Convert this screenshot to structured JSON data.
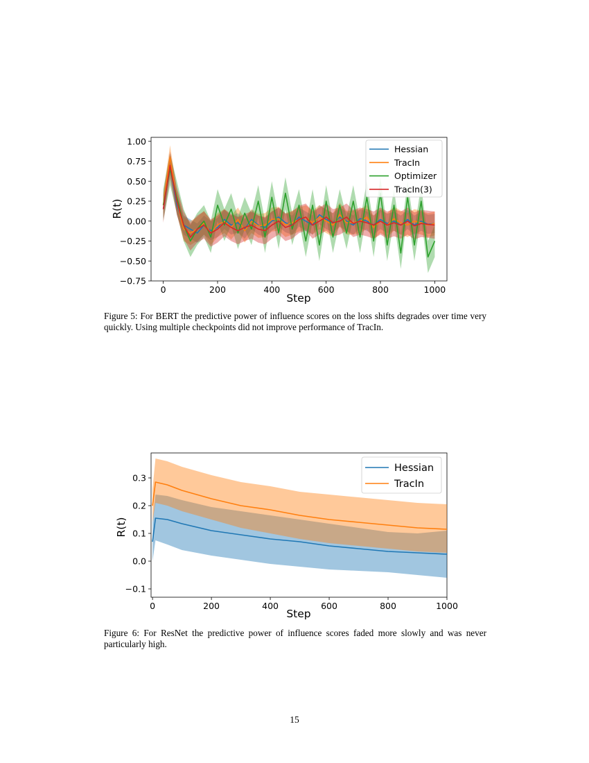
{
  "figures": [
    {
      "caption": "Figure 5: For BERT the predictive power of influence scores on the loss shifts degrades over time very quickly. Using multiple checkpoints did not improve performance of TracIn."
    },
    {
      "caption": "Figure 6: For ResNet the predictive power of influence scores faded more slowly and was never particularly high."
    }
  ],
  "page_number": "15",
  "chart_data": [
    {
      "type": "line",
      "xlabel": "Step",
      "ylabel": "R(t)",
      "xlim": [
        -45,
        1045
      ],
      "ylim": [
        -0.75,
        1.05
      ],
      "xticks": [
        0,
        200,
        400,
        600,
        800,
        1000
      ],
      "xtick_labels": [
        "0",
        "200",
        "400",
        "600",
        "800",
        "1000"
      ],
      "yticks": [
        -0.75,
        -0.5,
        -0.25,
        0.0,
        0.25,
        0.5,
        0.75,
        1.0
      ],
      "ytick_labels": [
        "−0.75",
        "−0.50",
        "−0.25",
        "0.00",
        "0.25",
        "0.50",
        "0.75",
        "1.00"
      ],
      "grid": false,
      "legend_position": "top-right",
      "shaded_bands": true,
      "x": [
        0,
        25,
        50,
        75,
        100,
        125,
        150,
        175,
        200,
        225,
        250,
        275,
        300,
        325,
        350,
        375,
        400,
        425,
        450,
        475,
        500,
        525,
        550,
        575,
        600,
        625,
        650,
        675,
        700,
        725,
        750,
        775,
        800,
        825,
        850,
        875,
        900,
        925,
        950,
        975,
        1000
      ],
      "series": [
        {
          "name": "Hessian",
          "color": "#1f77b4",
          "values": [
            0.15,
            0.7,
            0.2,
            -0.05,
            -0.1,
            -0.15,
            -0.05,
            -0.12,
            -0.08,
            0.02,
            -0.05,
            -0.02,
            -0.1,
            0.02,
            -0.05,
            -0.08,
            0.0,
            0.05,
            -0.02,
            -0.05,
            0.05,
            0.0,
            -0.05,
            0.08,
            0.02,
            -0.02,
            0.05,
            0.0,
            -0.05,
            0.03,
            0.0,
            -0.05,
            0.02,
            -0.03,
            0.0,
            -0.05,
            0.02,
            -0.05,
            0.0,
            -0.04,
            -0.03
          ],
          "band": 0.12
        },
        {
          "name": "TracIn",
          "color": "#ff7f0e",
          "values": [
            0.2,
            0.8,
            0.25,
            -0.1,
            -0.15,
            -0.1,
            -0.02,
            -0.15,
            -0.05,
            0.0,
            -0.08,
            0.02,
            -0.12,
            0.0,
            -0.06,
            -0.05,
            0.02,
            0.03,
            -0.05,
            -0.02,
            0.02,
            0.05,
            -0.02,
            0.05,
            0.0,
            -0.05,
            0.08,
            -0.02,
            -0.02,
            0.0,
            0.05,
            -0.08,
            0.0,
            -0.05,
            0.03,
            -0.02,
            -0.05,
            0.0,
            -0.02,
            -0.05,
            -0.03
          ],
          "band": 0.15
        },
        {
          "name": "Optimizer",
          "color": "#2ca02c",
          "values": [
            0.2,
            0.65,
            0.3,
            -0.05,
            -0.25,
            -0.1,
            0.0,
            -0.2,
            0.2,
            -0.05,
            0.15,
            -0.15,
            0.1,
            -0.1,
            0.25,
            -0.2,
            0.3,
            -0.15,
            0.35,
            -0.1,
            0.2,
            -0.25,
            0.2,
            -0.3,
            0.25,
            -0.2,
            0.2,
            -0.15,
            0.25,
            -0.2,
            0.3,
            -0.25,
            0.35,
            -0.3,
            0.2,
            -0.4,
            0.3,
            -0.3,
            0.25,
            -0.45,
            -0.25
          ],
          "band": 0.2
        },
        {
          "name": "TracIn(3)",
          "color": "#d62728",
          "values": [
            0.15,
            0.7,
            0.25,
            -0.05,
            -0.2,
            -0.1,
            -0.05,
            -0.15,
            -0.1,
            -0.02,
            -0.08,
            -0.12,
            -0.08,
            -0.05,
            -0.1,
            -0.12,
            -0.05,
            0.0,
            -0.08,
            -0.05,
            0.02,
            0.05,
            -0.05,
            0.0,
            0.05,
            -0.02,
            0.0,
            0.05,
            -0.03,
            0.0,
            -0.02,
            -0.05,
            0.0,
            -0.05,
            -0.02,
            -0.05,
            0.0,
            -0.06,
            -0.03,
            -0.04,
            -0.05
          ],
          "band": 0.17
        }
      ]
    },
    {
      "type": "line",
      "xlabel": "Step",
      "ylabel": "R(t)",
      "xlim": [
        -5,
        1000
      ],
      "ylim": [
        -0.13,
        0.39
      ],
      "xticks": [
        0,
        200,
        400,
        600,
        800,
        1000
      ],
      "xtick_labels": [
        "0",
        "200",
        "400",
        "600",
        "800",
        "1000"
      ],
      "yticks": [
        -0.1,
        0.0,
        0.1,
        0.2,
        0.3
      ],
      "ytick_labels": [
        "−0.1",
        "0.0",
        "0.1",
        "0.2",
        "0.3"
      ],
      "grid": false,
      "legend_position": "top-right",
      "shaded_bands": true,
      "x": [
        0,
        10,
        50,
        100,
        200,
        300,
        400,
        500,
        600,
        700,
        800,
        900,
        1000
      ],
      "series": [
        {
          "name": "Hessian",
          "color": "#1f77b4",
          "values": [
            0.07,
            0.155,
            0.15,
            0.135,
            0.11,
            0.095,
            0.08,
            0.07,
            0.055,
            0.045,
            0.035,
            0.03,
            0.025
          ],
          "lower": [
            0.0,
            0.075,
            0.06,
            0.04,
            0.02,
            0.005,
            -0.01,
            -0.02,
            -0.03,
            -0.035,
            -0.04,
            -0.05,
            -0.06
          ],
          "upper": [
            0.14,
            0.24,
            0.235,
            0.22,
            0.195,
            0.18,
            0.165,
            0.15,
            0.135,
            0.12,
            0.105,
            0.1,
            0.11
          ]
        },
        {
          "name": "TracIn",
          "color": "#ff7f0e",
          "values": [
            0.2,
            0.285,
            0.275,
            0.255,
            0.225,
            0.2,
            0.185,
            0.165,
            0.15,
            0.14,
            0.13,
            0.12,
            0.115
          ],
          "lower": [
            0.14,
            0.21,
            0.2,
            0.18,
            0.15,
            0.12,
            0.1,
            0.08,
            0.065,
            0.055,
            0.045,
            0.035,
            0.03
          ],
          "upper": [
            0.26,
            0.37,
            0.36,
            0.34,
            0.31,
            0.285,
            0.27,
            0.25,
            0.24,
            0.23,
            0.22,
            0.21,
            0.205
          ]
        }
      ]
    }
  ]
}
